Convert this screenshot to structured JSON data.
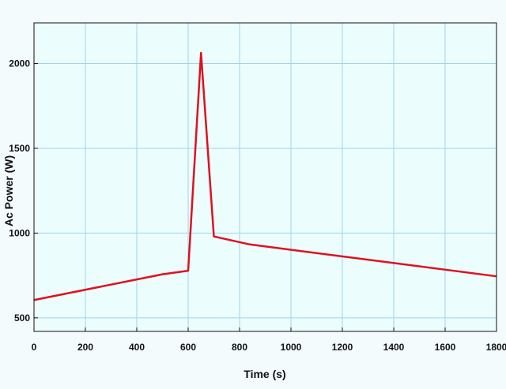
{
  "chart_data": {
    "type": "line",
    "title": "",
    "xlabel": "Time (s)",
    "ylabel": "Ac Power (W)",
    "xlim": [
      0,
      1800
    ],
    "ylim": [
      420,
      2240
    ],
    "xticks": [
      0,
      200,
      400,
      600,
      800,
      1000,
      1200,
      1400,
      1600,
      1800
    ],
    "yticks": [
      500,
      1000,
      1500,
      2000
    ],
    "grid": true,
    "legend": "none",
    "series": [
      {
        "color": "#e0101f",
        "x": [
          0,
          500,
          600,
          650,
          700,
          840,
          1800
        ],
        "y": [
          605,
          757,
          778,
          2063,
          980,
          933,
          745
        ]
      }
    ]
  },
  "colors": {
    "background": "#f3fbfd",
    "plot_area": "#ecfdfe",
    "grid": "#9fd4ec",
    "axis": "#111111",
    "series": "#e0101f"
  }
}
